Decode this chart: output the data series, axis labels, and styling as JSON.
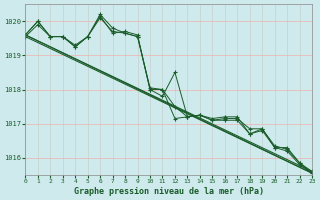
{
  "background_color": "#ceeaec",
  "grid_color_v": "#c8c8c8",
  "grid_color_h": "#f0b0b0",
  "line_color": "#1a5c2a",
  "title": "Graphe pression niveau de la mer (hPa)",
  "xlim": [
    0,
    23
  ],
  "ylim": [
    1015.5,
    1020.5
  ],
  "yticks": [
    1016,
    1017,
    1018,
    1019,
    1020
  ],
  "xticks": [
    0,
    1,
    2,
    3,
    4,
    5,
    6,
    7,
    8,
    9,
    10,
    11,
    12,
    13,
    14,
    15,
    16,
    17,
    18,
    19,
    20,
    21,
    22,
    23
  ],
  "series_with_markers": [
    [
      1019.6,
      1020.0,
      1019.55,
      1019.55,
      1019.25,
      1019.55,
      1020.2,
      1019.8,
      1019.65,
      1019.55,
      1018.0,
      1017.8,
      1018.5,
      1017.2,
      1017.25,
      1017.1,
      1017.15,
      1017.15,
      1016.85,
      1016.85,
      1016.35,
      1016.25,
      1015.85,
      1015.55
    ],
    [
      1019.6,
      1020.0,
      1019.55,
      1019.55,
      1019.25,
      1019.55,
      1020.1,
      1019.7,
      1019.65,
      1019.55,
      1018.05,
      1018.0,
      1017.5,
      1017.2,
      1017.25,
      1017.15,
      1017.2,
      1017.2,
      1016.7,
      1016.85,
      1016.3,
      1016.3,
      1015.85,
      1015.6
    ],
    [
      1019.55,
      1019.9,
      1019.55,
      1019.55,
      1019.3,
      1019.55,
      1020.15,
      1019.65,
      1019.7,
      1019.6,
      1018.0,
      1018.0,
      1017.15,
      1017.2,
      1017.25,
      1017.1,
      1017.1,
      1017.1,
      1016.7,
      1016.8,
      1016.3,
      1016.2,
      1015.8,
      1015.55
    ]
  ],
  "trend_lines": [
    [
      [
        0,
        23
      ],
      [
        1019.6,
        1015.55
      ]
    ],
    [
      [
        0,
        23
      ],
      [
        1019.6,
        1015.6
      ]
    ],
    [
      [
        0,
        23
      ],
      [
        1019.55,
        1015.55
      ]
    ]
  ]
}
